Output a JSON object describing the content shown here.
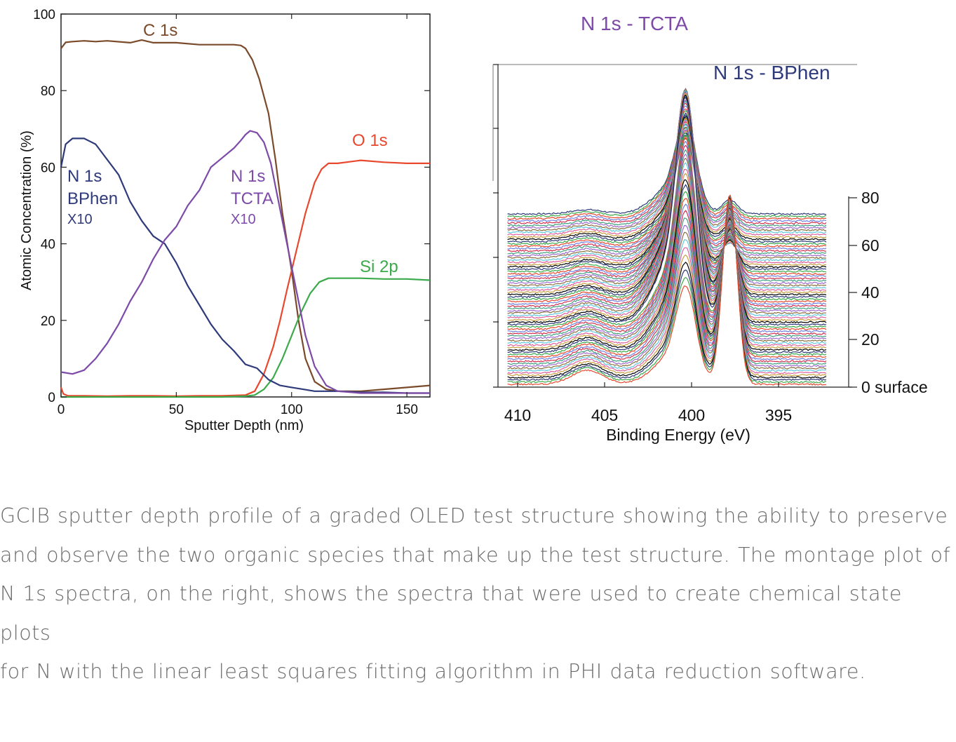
{
  "chart_data": [
    {
      "type": "line",
      "xlabel": "Sputter Depth (nm)",
      "ylabel": "Atomic Concentration (%)",
      "xlim": [
        0,
        160
      ],
      "ylim": [
        0,
        100
      ],
      "xticks": [
        "0",
        "50",
        "100",
        "150"
      ],
      "yticks": [
        "0",
        "20",
        "40",
        "60",
        "80",
        "100"
      ],
      "grid": false,
      "series": [
        {
          "name": "C 1s",
          "color": "#7a4a2a",
          "x": [
            0,
            2,
            5,
            10,
            15,
            20,
            30,
            35,
            40,
            50,
            60,
            70,
            75,
            78,
            80,
            83,
            86,
            90,
            93,
            96,
            100,
            103,
            106,
            110,
            115,
            120,
            130,
            140,
            150,
            160
          ],
          "y": [
            91,
            92.6,
            92.8,
            93,
            92.8,
            93,
            92.5,
            93.2,
            92.5,
            92.5,
            92,
            92,
            92,
            91.8,
            91,
            88,
            83,
            74,
            62,
            48,
            33,
            20,
            10,
            4,
            2,
            1.5,
            1.5,
            2,
            2.5,
            3
          ]
        },
        {
          "name": "O 1s",
          "color": "#e8482e",
          "x": [
            0,
            1,
            3,
            10,
            20,
            30,
            40,
            50,
            60,
            70,
            80,
            84,
            88,
            92,
            95,
            98,
            102,
            106,
            110,
            113,
            116,
            120,
            130,
            140,
            150,
            160
          ],
          "y": [
            2.5,
            0.8,
            0.3,
            0.3,
            0.2,
            0.3,
            0.3,
            0.2,
            0.3,
            0.3,
            0.5,
            1.5,
            6,
            13,
            20,
            28,
            38,
            48,
            56,
            59.5,
            61,
            61,
            61.8,
            61.3,
            61,
            61
          ]
        },
        {
          "name": "Si 2p",
          "color": "#3aaa4a",
          "x": [
            0,
            10,
            30,
            50,
            70,
            80,
            84,
            88,
            92,
            96,
            100,
            104,
            108,
            112,
            116,
            120,
            130,
            140,
            150,
            160
          ],
          "y": [
            0,
            0,
            0,
            0,
            0,
            0.2,
            0.5,
            2,
            5,
            10,
            16,
            22,
            27,
            30,
            31,
            31,
            31,
            30.8,
            30.8,
            30.5
          ]
        },
        {
          "name": "N 1s BPhen X10",
          "color": "#2e3a7a",
          "x": [
            0,
            2,
            5,
            10,
            15,
            20,
            25,
            30,
            35,
            40,
            45,
            50,
            55,
            60,
            65,
            70,
            75,
            80,
            85,
            90,
            95,
            100,
            105,
            110,
            120,
            130,
            140,
            150,
            160
          ],
          "y": [
            60,
            66,
            67.5,
            67.5,
            66,
            62,
            58,
            51,
            46,
            42,
            40,
            35,
            29,
            24,
            19,
            15,
            12,
            8.5,
            7.5,
            4.5,
            3,
            2.5,
            2,
            1.5,
            1.5,
            1.2,
            1.2,
            1,
            1
          ]
        },
        {
          "name": "N 1s TCTA X10",
          "color": "#7d4aa8",
          "x": [
            0,
            5,
            10,
            15,
            20,
            25,
            30,
            35,
            40,
            45,
            50,
            55,
            60,
            65,
            70,
            75,
            78,
            80,
            82,
            85,
            88,
            91,
            94,
            97,
            100,
            103,
            106,
            110,
            115,
            120,
            130,
            140,
            150,
            160
          ],
          "y": [
            6.5,
            6,
            7,
            10,
            14,
            19,
            25,
            30,
            36,
            41,
            44.5,
            50,
            54,
            60,
            62.5,
            65,
            67,
            68.5,
            69.5,
            69,
            66.5,
            61,
            52,
            43,
            34,
            25,
            16,
            8,
            3,
            1.5,
            1,
            1,
            1,
            1
          ]
        }
      ]
    },
    {
      "type": "line",
      "title_left": "N 1s - TCTA",
      "title_right": "N 1s - BPhen",
      "xlabel": "Binding Energy (eV)",
      "xlim": [
        411,
        391
      ],
      "xticks": [
        "410",
        "405",
        "400",
        "395"
      ],
      "depth_ticks": [
        "0 surface",
        "20",
        "40",
        "60",
        "80"
      ],
      "n_spectra": 75,
      "peaks": [
        {
          "label": "N 1s - TCTA",
          "center_eV": 399.9
        },
        {
          "label": "N 1s - BPhen",
          "center_eV": 397.3
        }
      ],
      "palette": [
        "#e8482e",
        "#3aaa4a",
        "#2e3a7a",
        "#000000",
        "#c8a040",
        "#e060a0",
        "#60c8e0",
        "#8a7040",
        "#a06ad0",
        "#40a080",
        "#d03050",
        "#7080e0"
      ]
    }
  ],
  "caption": {
    "lines": [
      "GCIB sputter depth profile of a graded OLED test structure showing the ability to preserve",
      "and observe the two organic species that make up the test structure. The montage plot of",
      "N 1s spectra, on the right, shows the spectra that were used to create chemical state plots",
      "for N with the linear least squares fitting algorithm in PHI data reduction software."
    ]
  },
  "annotations": {
    "c1s": "C 1s",
    "o1s": "O 1s",
    "si2p": "Si 2p",
    "bphen_n": "N 1s",
    "bphen_name": "BPhen",
    "bphen_mult": "X10",
    "tcta_n": "N 1s",
    "tcta_name": "TCTA",
    "tcta_mult": "X10"
  }
}
